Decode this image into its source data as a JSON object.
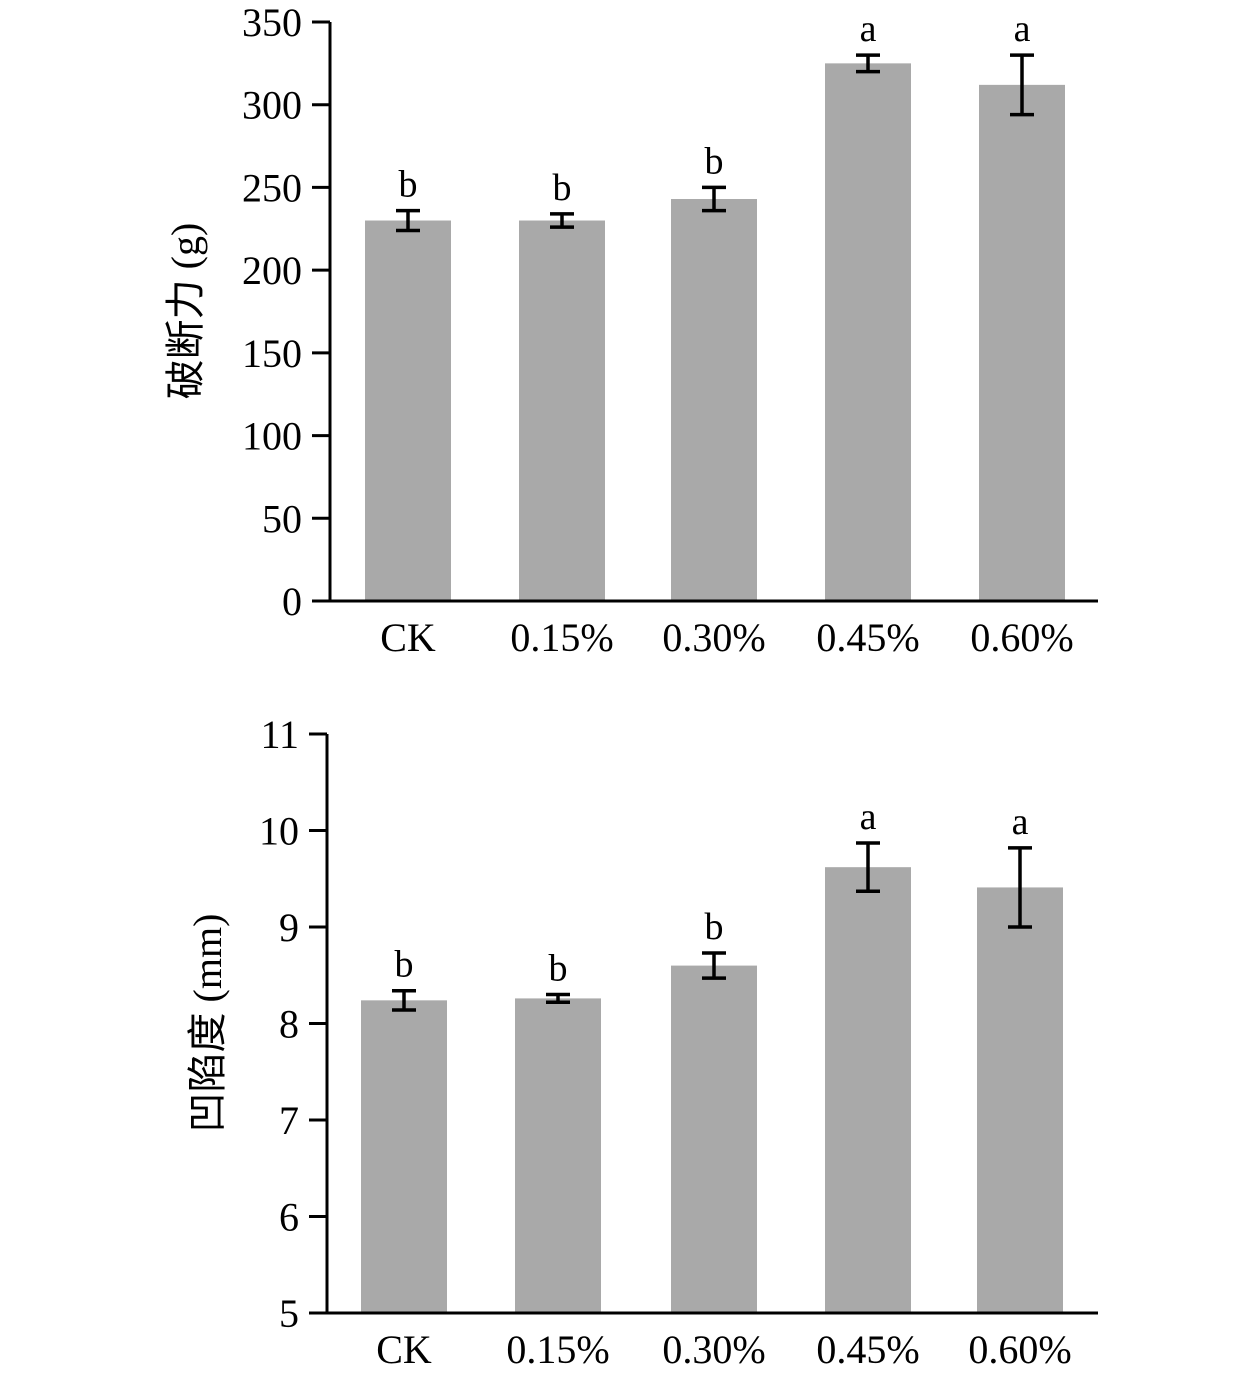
{
  "chart_data": [
    {
      "type": "bar",
      "categories": [
        "CK",
        "0.15%",
        "0.30%",
        "0.45%",
        "0.60%"
      ],
      "values": [
        230,
        230,
        243,
        325,
        312
      ],
      "errors": [
        6,
        4,
        7,
        5,
        18
      ],
      "significance": [
        "b",
        "b",
        "b",
        "a",
        "a"
      ],
      "ylabel": "破断力 (g)",
      "ylim": [
        0,
        350
      ],
      "yticks": [
        "0",
        "50",
        "100",
        "150",
        "200",
        "250",
        "300",
        "350"
      ],
      "bar_color": "#a9a9a9",
      "grid": false
    },
    {
      "type": "bar",
      "categories": [
        "CK",
        "0.15%",
        "0.30%",
        "0.45%",
        "0.60%"
      ],
      "values": [
        8.24,
        8.26,
        8.6,
        9.62,
        9.41
      ],
      "errors": [
        0.1,
        0.04,
        0.13,
        0.25,
        0.41
      ],
      "significance": [
        "b",
        "b",
        "b",
        "a",
        "a"
      ],
      "ylabel": "凹陷度 (mm)",
      "ylim": [
        5,
        11
      ],
      "yticks": [
        "5",
        "6",
        "7",
        "8",
        "9",
        "10",
        "11"
      ],
      "bar_color": "#a9a9a9",
      "grid": false
    }
  ]
}
